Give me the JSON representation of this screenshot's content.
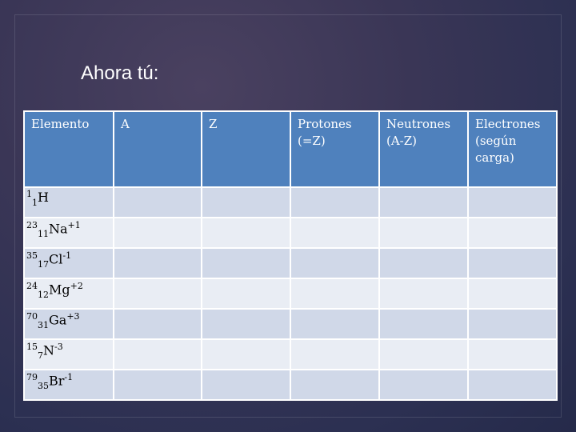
{
  "slide": {
    "title": "Ahora tú:"
  },
  "table": {
    "headers": [
      "Elemento",
      "A",
      "Z",
      "Protones (=Z)",
      "Neutrones (A-Z)",
      "Electrones (según carga)"
    ],
    "rows": [
      {
        "mass": "1",
        "atomic": "1",
        "symbol": "H",
        "charge": ""
      },
      {
        "mass": "23",
        "atomic": "11",
        "symbol": "Na",
        "charge": "+1"
      },
      {
        "mass": "35",
        "atomic": "17",
        "symbol": "Cl",
        "charge": "-1"
      },
      {
        "mass": "24",
        "atomic": "12",
        "symbol": "Mg",
        "charge": "+2"
      },
      {
        "mass": "70",
        "atomic": "31",
        "symbol": "Ga",
        "charge": "+3"
      },
      {
        "mass": "15",
        "atomic": "7",
        "symbol": "N",
        "charge": "-3"
      },
      {
        "mass": "79",
        "atomic": "35",
        "symbol": "Br",
        "charge": "-1"
      }
    ]
  },
  "colors": {
    "header_bg": "#4f81bd",
    "row_odd": "#d0d8e8",
    "row_even": "#e9edf4"
  }
}
